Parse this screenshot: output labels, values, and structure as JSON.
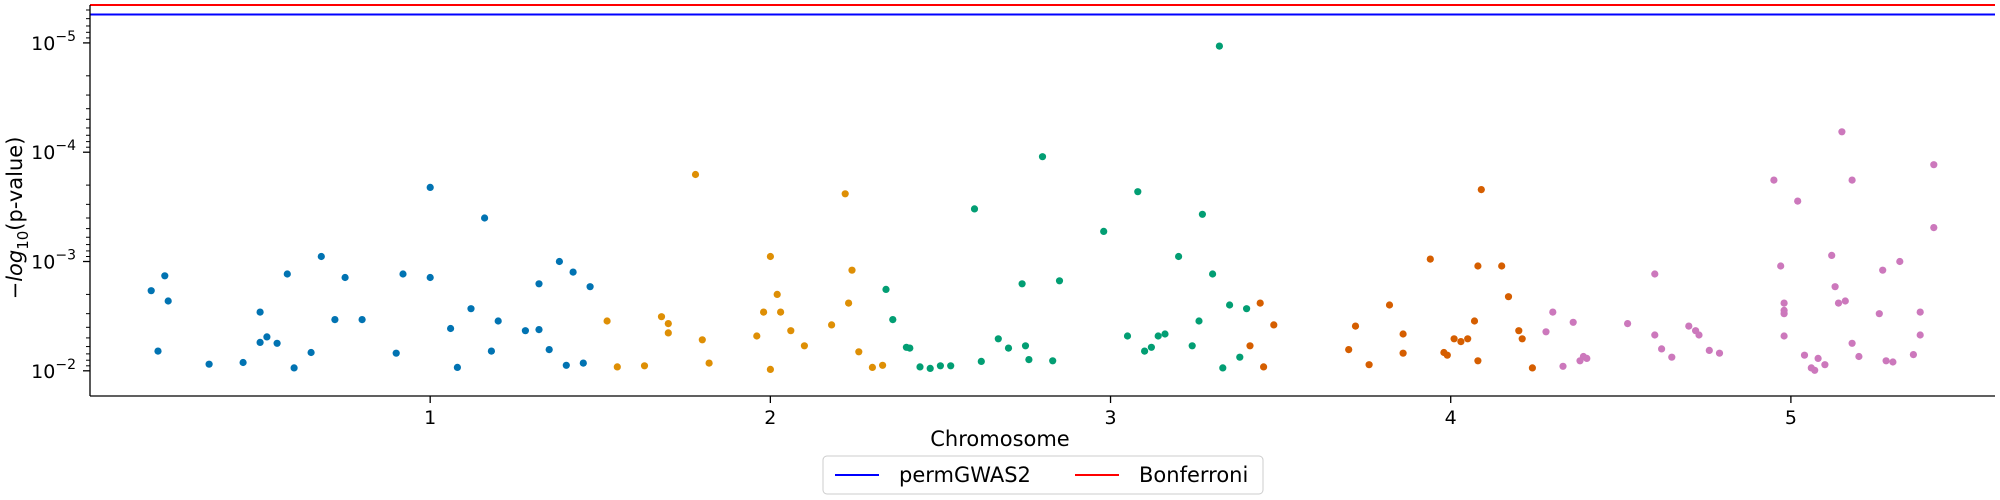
{
  "chart_data": {
    "type": "scatter",
    "title": "",
    "xlabel": "Chromosome",
    "ylabel": "-log10(p-value)",
    "y_scale": "log-inverted",
    "ylim": [
      0.017,
      4.5e-06
    ],
    "x_ticks": [
      {
        "label": "1",
        "pos": 1
      },
      {
        "label": "2",
        "pos": 2
      },
      {
        "label": "3",
        "pos": 3
      },
      {
        "label": "4",
        "pos": 4
      },
      {
        "label": "5",
        "pos": 5
      }
    ],
    "y_ticks": [
      {
        "value": 0.01,
        "base": "10",
        "exp": "−2"
      },
      {
        "value": 0.001,
        "base": "10",
        "exp": "−3"
      },
      {
        "value": 0.0001,
        "base": "10",
        "exp": "−4"
      },
      {
        "value": 1e-05,
        "base": "10",
        "exp": "−5"
      }
    ],
    "thresholds": [
      {
        "name": "permGWAS2",
        "value": 5.5e-06,
        "color": "#0000ff"
      },
      {
        "name": "Bonferroni",
        "value": 4.5e-06,
        "color": "#ff0000"
      }
    ],
    "legend": {
      "placement": "bottom-center"
    },
    "grid": false,
    "series": [
      {
        "chromosome": "1",
        "color": "#0173b2",
        "points": [
          [
            0.18,
            0.00185
          ],
          [
            0.2,
            0.0066
          ],
          [
            0.22,
            0.00135
          ],
          [
            0.23,
            0.0023
          ],
          [
            0.35,
            0.0087
          ],
          [
            0.45,
            0.0084
          ],
          [
            0.5,
            0.0029
          ],
          [
            0.5,
            0.0055
          ],
          [
            0.52,
            0.0049
          ],
          [
            0.55,
            0.0056
          ],
          [
            0.58,
            0.0013
          ],
          [
            0.6,
            0.0094
          ],
          [
            0.65,
            0.0068
          ],
          [
            0.68,
            0.0009
          ],
          [
            0.72,
            0.0034
          ],
          [
            0.75,
            0.0014
          ],
          [
            0.8,
            0.0034
          ],
          [
            0.9,
            0.0069
          ],
          [
            0.92,
            0.0013
          ],
          [
            1.0,
            0.00021
          ],
          [
            1.0,
            0.0014
          ],
          [
            1.06,
            0.0041
          ],
          [
            1.08,
            0.0093
          ],
          [
            1.12,
            0.0027
          ],
          [
            1.16,
            0.0004
          ],
          [
            1.18,
            0.0066
          ],
          [
            1.2,
            0.0035
          ],
          [
            1.28,
            0.0043
          ],
          [
            1.32,
            0.0016
          ],
          [
            1.32,
            0.0042
          ],
          [
            1.35,
            0.0064
          ],
          [
            1.38,
            0.001
          ],
          [
            1.4,
            0.0089
          ],
          [
            1.42,
            0.00125
          ],
          [
            1.45,
            0.0085
          ],
          [
            1.47,
            0.0017
          ]
        ]
      },
      {
        "chromosome": "2",
        "color": "#de8f05",
        "points": [
          [
            1.52,
            0.0035
          ],
          [
            1.55,
            0.0092
          ],
          [
            1.63,
            0.009
          ],
          [
            1.68,
            0.0032
          ],
          [
            1.7,
            0.0037
          ],
          [
            1.7,
            0.0045
          ],
          [
            1.78,
            0.00016
          ],
          [
            1.8,
            0.0052
          ],
          [
            1.82,
            0.0085
          ],
          [
            1.96,
            0.0048
          ],
          [
            1.98,
            0.0029
          ],
          [
            2.0,
            0.0009
          ],
          [
            2.0,
            0.0097
          ],
          [
            2.02,
            0.002
          ],
          [
            2.03,
            0.0029
          ],
          [
            2.06,
            0.0043
          ],
          [
            2.1,
            0.0059
          ],
          [
            2.18,
            0.0038
          ],
          [
            2.22,
            0.00024
          ],
          [
            2.23,
            0.0024
          ],
          [
            2.24,
            0.0012
          ],
          [
            2.26,
            0.0067
          ],
          [
            2.3,
            0.0093
          ],
          [
            2.33,
            0.0089
          ]
        ]
      },
      {
        "chromosome": "3",
        "color": "#029e73",
        "points": [
          [
            2.34,
            0.0018
          ],
          [
            2.36,
            0.0034
          ],
          [
            2.4,
            0.0061
          ],
          [
            2.41,
            0.0062
          ],
          [
            2.44,
            0.0092
          ],
          [
            2.47,
            0.0095
          ],
          [
            2.5,
            0.009
          ],
          [
            2.53,
            0.009
          ],
          [
            2.6,
            0.00033
          ],
          [
            2.62,
            0.0082
          ],
          [
            2.67,
            0.0051
          ],
          [
            2.7,
            0.0062
          ],
          [
            2.74,
            0.0016
          ],
          [
            2.75,
            0.0059
          ],
          [
            2.76,
            0.0079
          ],
          [
            2.8,
            0.00011
          ],
          [
            2.83,
            0.0081
          ],
          [
            2.85,
            0.0015
          ],
          [
            2.98,
            0.00053
          ],
          [
            3.05,
            0.0048
          ],
          [
            3.08,
            0.00023
          ],
          [
            3.1,
            0.0066
          ],
          [
            3.12,
            0.0061
          ],
          [
            3.14,
            0.0048
          ],
          [
            3.16,
            0.0046
          ],
          [
            3.2,
            0.0009
          ],
          [
            3.24,
            0.0059
          ],
          [
            3.26,
            0.0035
          ],
          [
            3.27,
            0.00037
          ],
          [
            3.3,
            0.0013
          ],
          [
            3.32,
            1.07e-05
          ],
          [
            3.33,
            0.0094
          ],
          [
            3.35,
            0.0025
          ],
          [
            3.38,
            0.0075
          ],
          [
            3.4,
            0.0027
          ]
        ]
      },
      {
        "chromosome": "4",
        "color": "#d55e00",
        "points": [
          [
            3.41,
            0.0059
          ],
          [
            3.44,
            0.0024
          ],
          [
            3.45,
            0.0092
          ],
          [
            3.48,
            0.0038
          ],
          [
            3.7,
            0.0064
          ],
          [
            3.72,
            0.0039
          ],
          [
            3.76,
            0.0088
          ],
          [
            3.82,
            0.0025
          ],
          [
            3.86,
            0.0046
          ],
          [
            3.86,
            0.0069
          ],
          [
            3.94,
            0.00095
          ],
          [
            3.98,
            0.0068
          ],
          [
            3.99,
            0.0072
          ],
          [
            4.01,
            0.0051
          ],
          [
            4.03,
            0.0054
          ],
          [
            4.05,
            0.0051
          ],
          [
            4.07,
            0.0035
          ],
          [
            4.08,
            0.0011
          ],
          [
            4.08,
            0.0081
          ],
          [
            4.09,
            0.00022
          ],
          [
            4.15,
            0.0011
          ],
          [
            4.17,
            0.0021
          ],
          [
            4.2,
            0.0043
          ],
          [
            4.21,
            0.0051
          ],
          [
            4.24,
            0.0094
          ]
        ]
      },
      {
        "chromosome": "5",
        "color": "#cc78bc",
        "points": [
          [
            4.28,
            0.0044
          ],
          [
            4.3,
            0.0029
          ],
          [
            4.33,
            0.0091
          ],
          [
            4.36,
            0.0036
          ],
          [
            4.38,
            0.0081
          ],
          [
            4.39,
            0.0074
          ],
          [
            4.4,
            0.0077
          ],
          [
            4.52,
            0.0037
          ],
          [
            4.6,
            0.0013
          ],
          [
            4.6,
            0.0047
          ],
          [
            4.62,
            0.0063
          ],
          [
            4.65,
            0.0075
          ],
          [
            4.7,
            0.0039
          ],
          [
            4.72,
            0.0043
          ],
          [
            4.73,
            0.0047
          ],
          [
            4.76,
            0.0065
          ],
          [
            4.79,
            0.0069
          ],
          [
            4.95,
            0.00018
          ],
          [
            4.97,
            0.0011
          ],
          [
            4.98,
            0.0024
          ],
          [
            4.98,
            0.0028
          ],
          [
            4.98,
            0.003
          ],
          [
            4.98,
            0.0048
          ],
          [
            5.02,
            0.00028
          ],
          [
            5.04,
            0.0072
          ],
          [
            5.06,
            0.0094
          ],
          [
            5.07,
            0.0099
          ],
          [
            5.08,
            0.0077
          ],
          [
            5.1,
            0.0088
          ],
          [
            5.12,
            0.00088
          ],
          [
            5.13,
            0.0017
          ],
          [
            5.14,
            0.0024
          ],
          [
            5.15,
            6.5e-05
          ],
          [
            5.16,
            0.0023
          ],
          [
            5.18,
            0.00018
          ],
          [
            5.18,
            0.0056
          ],
          [
            5.2,
            0.0074
          ],
          [
            5.26,
            0.003
          ],
          [
            5.27,
            0.0012
          ],
          [
            5.28,
            0.0081
          ],
          [
            5.3,
            0.0083
          ],
          [
            5.32,
            0.001
          ],
          [
            5.36,
            0.0071
          ],
          [
            5.38,
            0.0029
          ],
          [
            5.38,
            0.0047
          ],
          [
            5.42,
            0.00013
          ],
          [
            5.42,
            0.00049
          ]
        ]
      }
    ]
  }
}
